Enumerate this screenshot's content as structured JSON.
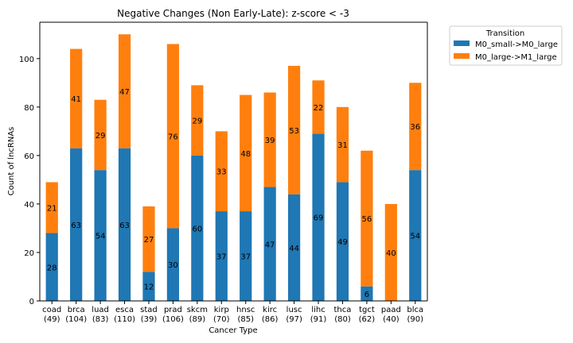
{
  "chart_data": {
    "type": "bar",
    "stacked": true,
    "title": "Negative Changes (Non Early-Late): z-score < -3",
    "xlabel": "Cancer Type",
    "ylabel": "Count of lncRNAs",
    "ylim": [
      0,
      115
    ],
    "yticks": [
      0,
      20,
      40,
      60,
      80,
      100
    ],
    "grid": false,
    "legend_position": "outside-top-right",
    "legend_title": "Transition",
    "categories": [
      "coad",
      "brca",
      "luad",
      "esca",
      "stad",
      "prad",
      "skcm",
      "kirp",
      "hnsc",
      "kirc",
      "lusc",
      "lihc",
      "thca",
      "tgct",
      "paad",
      "blca"
    ],
    "category_totals": [
      "(49)",
      "(104)",
      "(83)",
      "(110)",
      "(39)",
      "(106)",
      "(89)",
      "(70)",
      "(85)",
      "(86)",
      "(97)",
      "(91)",
      "(80)",
      "(62)",
      "(40)",
      "(90)"
    ],
    "series": [
      {
        "name": "M0_small->M0_large",
        "color": "#1f77b4",
        "values": [
          28,
          63,
          54,
          63,
          12,
          30,
          60,
          37,
          37,
          47,
          44,
          69,
          49,
          6,
          0,
          54
        ]
      },
      {
        "name": "M0_large->M1_large",
        "color": "#ff7f0e",
        "values": [
          21,
          41,
          29,
          47,
          27,
          76,
          29,
          33,
          48,
          39,
          53,
          22,
          31,
          56,
          40,
          36
        ]
      }
    ]
  }
}
